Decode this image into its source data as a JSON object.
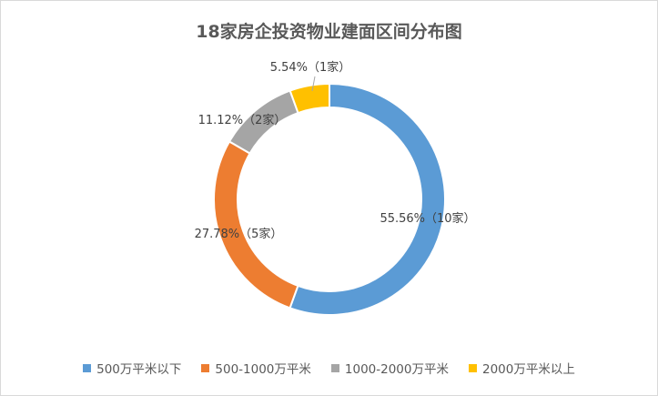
{
  "chart_data": {
    "type": "pie",
    "title": "18家房企投资物业建面区间分布图",
    "categories": [
      "500万平米以下",
      "500-1000万平米",
      "1000-2000万平米",
      "2000万平米以上"
    ],
    "values": [
      55.56,
      27.78,
      11.12,
      5.54
    ],
    "counts": [
      10,
      5,
      2,
      1
    ],
    "labels": [
      "55.56%（10家）",
      "27.78%（5家）",
      "11.12%（2家）",
      "5.54%（1家）"
    ],
    "colors": [
      "#5B9BD5",
      "#ED7D31",
      "#A5A5A5",
      "#FFC000"
    ],
    "legend_position": "bottom"
  }
}
